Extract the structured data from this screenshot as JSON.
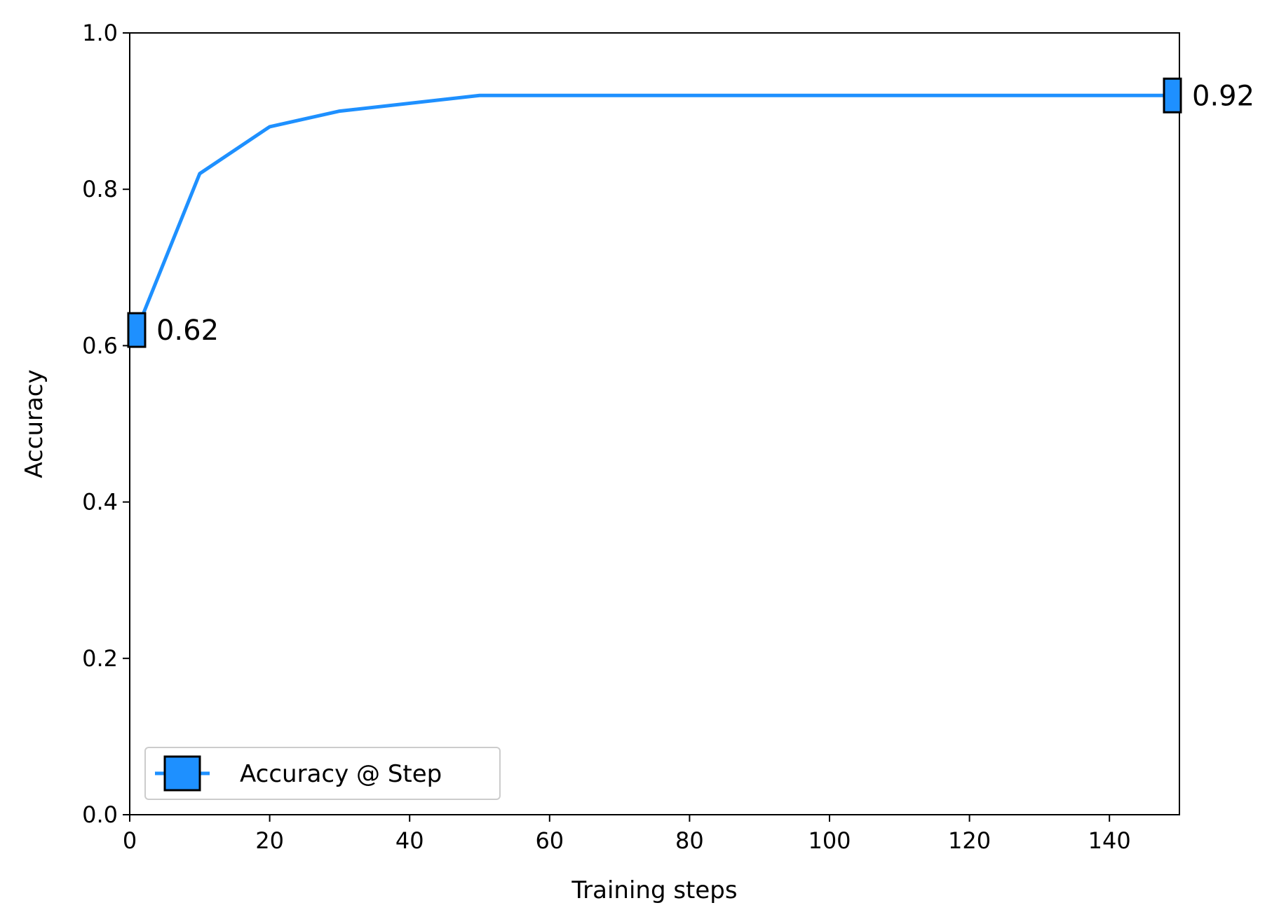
{
  "chart_data": {
    "type": "line",
    "title": "",
    "xlabel": "Training steps",
    "ylabel": "Accuracy",
    "xlim": [
      0,
      150
    ],
    "ylim": [
      0.0,
      1.0
    ],
    "x_ticks": [
      0,
      20,
      40,
      60,
      80,
      100,
      120,
      140
    ],
    "x_tick_labels": [
      "0",
      "20",
      "40",
      "60",
      "80",
      "100",
      "120",
      "140"
    ],
    "y_ticks": [
      0.0,
      0.2,
      0.4,
      0.6,
      0.8,
      1.0
    ],
    "y_tick_labels": [
      "0.0",
      "0.2",
      "0.4",
      "0.6",
      "0.8",
      "1.0"
    ],
    "grid": false,
    "legend_position": "lower-left",
    "series": [
      {
        "name": "Accuracy @ Step",
        "color": "#1e90ff",
        "marker": "square",
        "x": [
          1,
          10,
          20,
          30,
          50,
          149
        ],
        "y": [
          0.62,
          0.82,
          0.88,
          0.9,
          0.92,
          0.92
        ],
        "marked_points": [
          {
            "x": 1,
            "y": 0.62,
            "label": "0.62"
          },
          {
            "x": 149,
            "y": 0.92,
            "label": "0.92"
          }
        ]
      }
    ]
  }
}
